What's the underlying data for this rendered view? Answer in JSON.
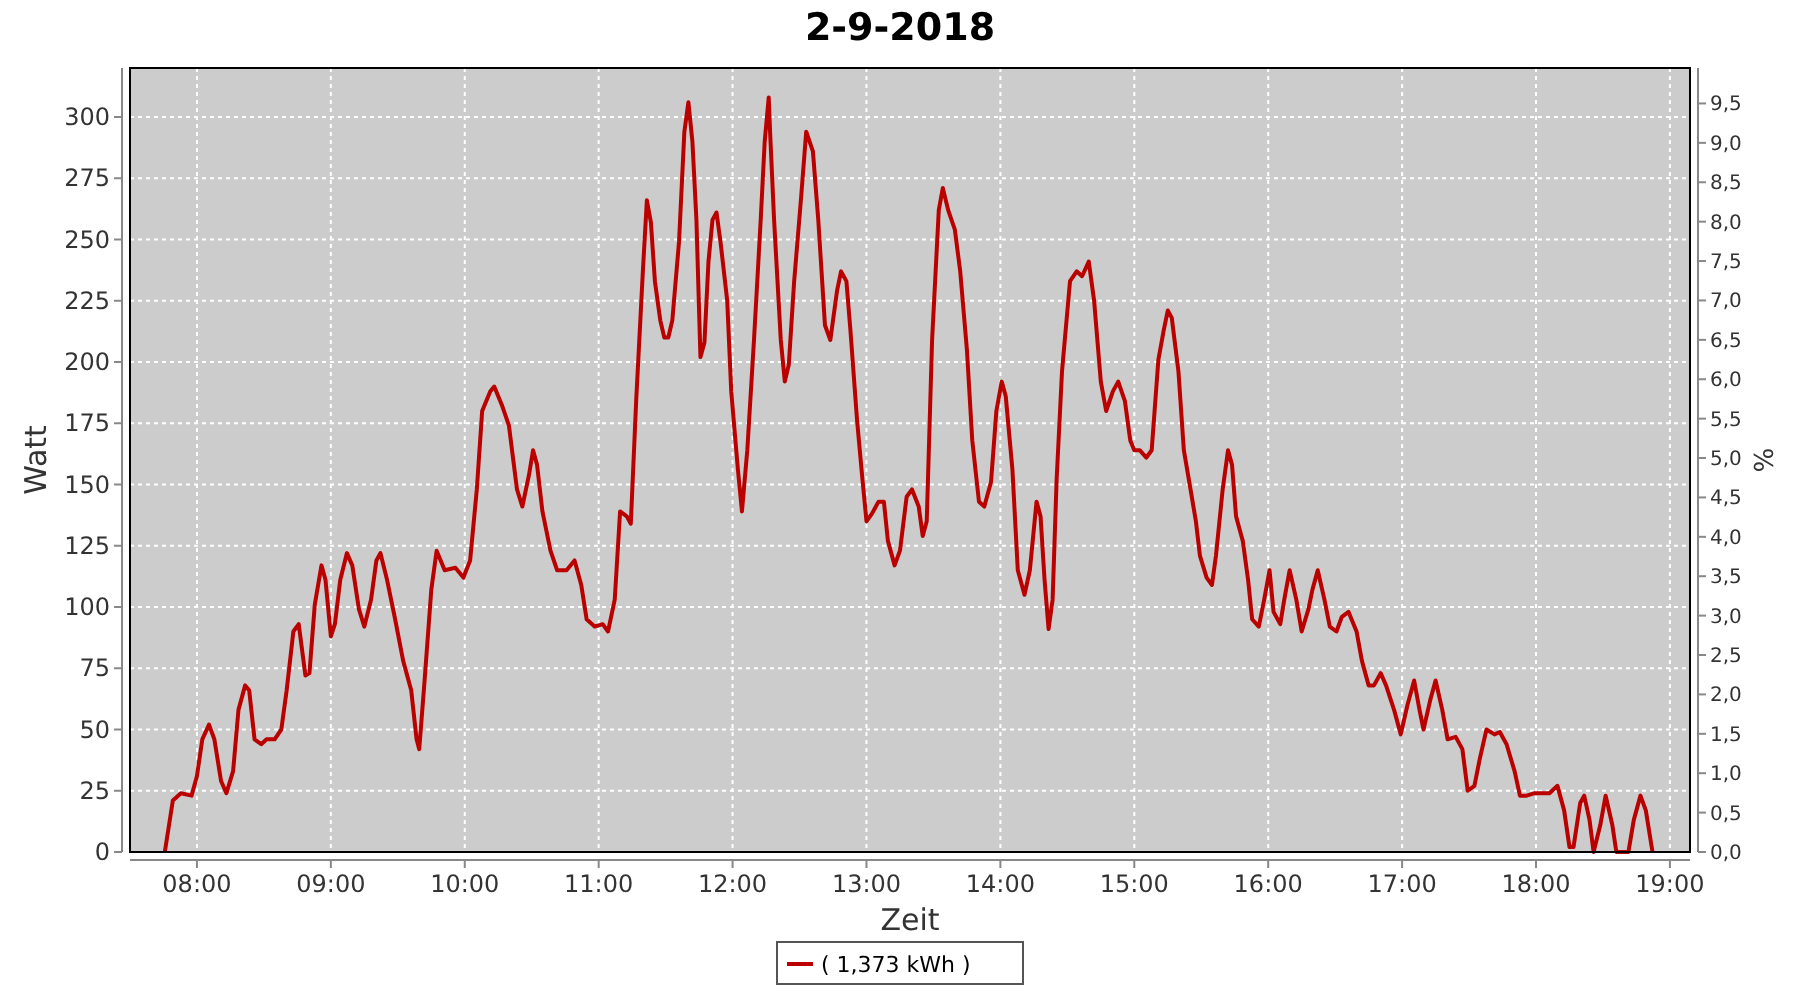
{
  "chart_data": {
    "type": "line",
    "title": "2-9-2018",
    "xlabel": "Zeit",
    "ylabel": "Watt",
    "y2label": "%",
    "xlim": [
      7.5,
      19.15
    ],
    "xticks": [
      {
        "value": 8,
        "label": "08:00"
      },
      {
        "value": 9,
        "label": "09:00"
      },
      {
        "value": 10,
        "label": "10:00"
      },
      {
        "value": 11,
        "label": "11:00"
      },
      {
        "value": 12,
        "label": "12:00"
      },
      {
        "value": 13,
        "label": "13:00"
      },
      {
        "value": 14,
        "label": "14:00"
      },
      {
        "value": 15,
        "label": "15:00"
      },
      {
        "value": 16,
        "label": "16:00"
      },
      {
        "value": 17,
        "label": "17:00"
      },
      {
        "value": 18,
        "label": "18:00"
      },
      {
        "value": 19,
        "label": "19:00"
      }
    ],
    "ylim": [
      0,
      320
    ],
    "yticks": [
      0,
      25,
      50,
      75,
      100,
      125,
      150,
      175,
      200,
      225,
      250,
      275,
      300
    ],
    "y2lim": [
      0,
      9.95
    ],
    "y2ticks": [
      {
        "value": 0,
        "label": "0,0"
      },
      {
        "value": 0.5,
        "label": "0,5"
      },
      {
        "value": 1,
        "label": "1,0"
      },
      {
        "value": 1.5,
        "label": "1,5"
      },
      {
        "value": 2,
        "label": "2,0"
      },
      {
        "value": 2.5,
        "label": "2,5"
      },
      {
        "value": 3,
        "label": "3,0"
      },
      {
        "value": 3.5,
        "label": "3,5"
      },
      {
        "value": 4,
        "label": "4,0"
      },
      {
        "value": 4.5,
        "label": "4,5"
      },
      {
        "value": 5,
        "label": "5,0"
      },
      {
        "value": 5.5,
        "label": "5,5"
      },
      {
        "value": 6,
        "label": "6,0"
      },
      {
        "value": 6.5,
        "label": "6,5"
      },
      {
        "value": 7,
        "label": "7,0"
      },
      {
        "value": 7.5,
        "label": "7,5"
      },
      {
        "value": 8,
        "label": "8,0"
      },
      {
        "value": 8.5,
        "label": "8,5"
      },
      {
        "value": 9,
        "label": "9,0"
      },
      {
        "value": 9.5,
        "label": "9,5"
      }
    ],
    "grid": true,
    "legend": "bottom",
    "series": [
      {
        "name": "( 1,373 kWh )",
        "color": "#bb0000",
        "x": [
          7.76,
          7.82,
          7.88,
          7.96,
          8.0,
          8.04,
          8.09,
          8.13,
          8.18,
          8.22,
          8.27,
          8.31,
          8.36,
          8.39,
          8.43,
          8.48,
          8.52,
          8.58,
          8.63,
          8.67,
          8.72,
          8.76,
          8.81,
          8.84,
          8.88,
          8.93,
          8.96,
          9.0,
          9.03,
          9.07,
          9.12,
          9.16,
          9.21,
          9.25,
          9.3,
          9.34,
          9.37,
          9.42,
          9.48,
          9.54,
          9.6,
          9.64,
          9.66,
          9.7,
          9.75,
          9.79,
          9.85,
          9.93,
          9.99,
          10.04,
          10.09,
          10.13,
          10.19,
          10.22,
          10.28,
          10.33,
          10.39,
          10.43,
          10.48,
          10.51,
          10.54,
          10.58,
          10.64,
          10.69,
          10.76,
          10.82,
          10.87,
          10.91,
          10.97,
          11.03,
          11.07,
          11.12,
          11.16,
          11.21,
          11.24,
          11.28,
          11.33,
          11.36,
          11.39,
          11.42,
          11.46,
          11.49,
          11.52,
          11.55,
          11.6,
          11.64,
          11.67,
          11.7,
          11.73,
          11.76,
          11.79,
          11.82,
          11.85,
          11.88,
          11.91,
          11.96,
          11.99,
          12.04,
          12.07,
          12.11,
          12.16,
          12.21,
          12.24,
          12.27,
          12.28,
          12.31,
          12.36,
          12.39,
          12.42,
          12.46,
          12.51,
          12.55,
          12.6,
          12.64,
          12.69,
          12.73,
          12.78,
          12.81,
          12.85,
          12.88,
          12.93,
          12.97,
          13.0,
          13.04,
          13.09,
          13.13,
          13.16,
          13.21,
          13.25,
          13.3,
          13.34,
          13.39,
          13.42,
          13.45,
          13.49,
          13.54,
          13.57,
          13.61,
          13.66,
          13.7,
          13.75,
          13.79,
          13.84,
          13.88,
          13.93,
          13.97,
          14.01,
          14.04,
          14.09,
          14.13,
          14.18,
          14.22,
          14.27,
          14.3,
          14.33,
          14.36,
          14.39,
          14.42,
          14.46,
          14.52,
          14.57,
          14.61,
          14.66,
          14.7,
          14.75,
          14.79,
          14.84,
          14.88,
          14.93,
          14.97,
          15.0,
          15.04,
          15.09,
          15.13,
          15.18,
          15.22,
          15.25,
          15.28,
          15.33,
          15.37,
          15.42,
          15.46,
          15.49,
          15.54,
          15.58,
          15.61,
          15.66,
          15.7,
          15.73,
          15.76,
          15.81,
          15.85,
          15.88,
          15.93,
          15.97,
          16.01,
          16.04,
          16.09,
          16.12,
          16.16,
          16.21,
          16.25,
          16.3,
          16.33,
          16.37,
          16.42,
          16.46,
          16.51,
          16.55,
          16.6,
          16.66,
          16.7,
          16.75,
          16.79,
          16.84,
          16.88,
          16.94,
          16.99,
          17.04,
          17.09,
          17.13,
          17.16,
          17.21,
          17.25,
          17.3,
          17.34,
          17.4,
          17.45,
          17.49,
          17.54,
          17.58,
          17.63,
          17.69,
          17.73,
          17.78,
          17.84,
          17.88,
          17.93,
          17.99,
          18.04,
          18.1,
          18.16,
          18.21,
          18.25,
          18.28,
          18.33,
          18.36,
          18.4,
          18.43,
          18.48,
          18.52,
          18.57,
          18.6,
          18.69,
          18.73,
          18.78,
          18.82,
          18.87
        ],
        "values": [
          0,
          21,
          24,
          23,
          31,
          46,
          52,
          46,
          29,
          24,
          33,
          58,
          68,
          66,
          46,
          44,
          46,
          46,
          50,
          66,
          90,
          93,
          72,
          73,
          101,
          117,
          111,
          88,
          93,
          111,
          122,
          117,
          99,
          92,
          103,
          119,
          122,
          111,
          95,
          78,
          66,
          46,
          42,
          70,
          107,
          123,
          115,
          116,
          112,
          119,
          148,
          180,
          188,
          190,
          182,
          174,
          148,
          141,
          154,
          164,
          158,
          139,
          123,
          115,
          115,
          119,
          109,
          95,
          92,
          93,
          90,
          103,
          139,
          137,
          134,
          184,
          237,
          266,
          257,
          233,
          217,
          210,
          210,
          217,
          249,
          294,
          306,
          290,
          258,
          202,
          208,
          241,
          258,
          261,
          249,
          225,
          188,
          156,
          139,
          164,
          209,
          258,
          290,
          308,
          294,
          258,
          209,
          192,
          199,
          233,
          266,
          294,
          286,
          258,
          215,
          209,
          229,
          237,
          233,
          213,
          176,
          152,
          135,
          138,
          143,
          143,
          127,
          117,
          123,
          145,
          148,
          141,
          129,
          135,
          209,
          262,
          271,
          262,
          254,
          237,
          205,
          168,
          143,
          141,
          151,
          180,
          192,
          186,
          156,
          115,
          105,
          115,
          143,
          137,
          111,
          91,
          103,
          152,
          196,
          233,
          237,
          235,
          241,
          225,
          192,
          180,
          188,
          192,
          184,
          168,
          164,
          164,
          161,
          164,
          201,
          213,
          221,
          218,
          196,
          164,
          148,
          135,
          121,
          112,
          109,
          121,
          148,
          164,
          158,
          137,
          127,
          111,
          95,
          92,
          103,
          115,
          98,
          93,
          103,
          115,
          103,
          90,
          99,
          107,
          115,
          103,
          92,
          90,
          96,
          98,
          90,
          78,
          68,
          68,
          73,
          68,
          58,
          48,
          60,
          70,
          58,
          50,
          62,
          70,
          58,
          46,
          47,
          42,
          25,
          27,
          38,
          50,
          48,
          49,
          44,
          33,
          23,
          23,
          24,
          24,
          24,
          27,
          17,
          2,
          2,
          20,
          23,
          13,
          0,
          11,
          23,
          11,
          0,
          0,
          13,
          23,
          17,
          0
        ]
      }
    ]
  }
}
